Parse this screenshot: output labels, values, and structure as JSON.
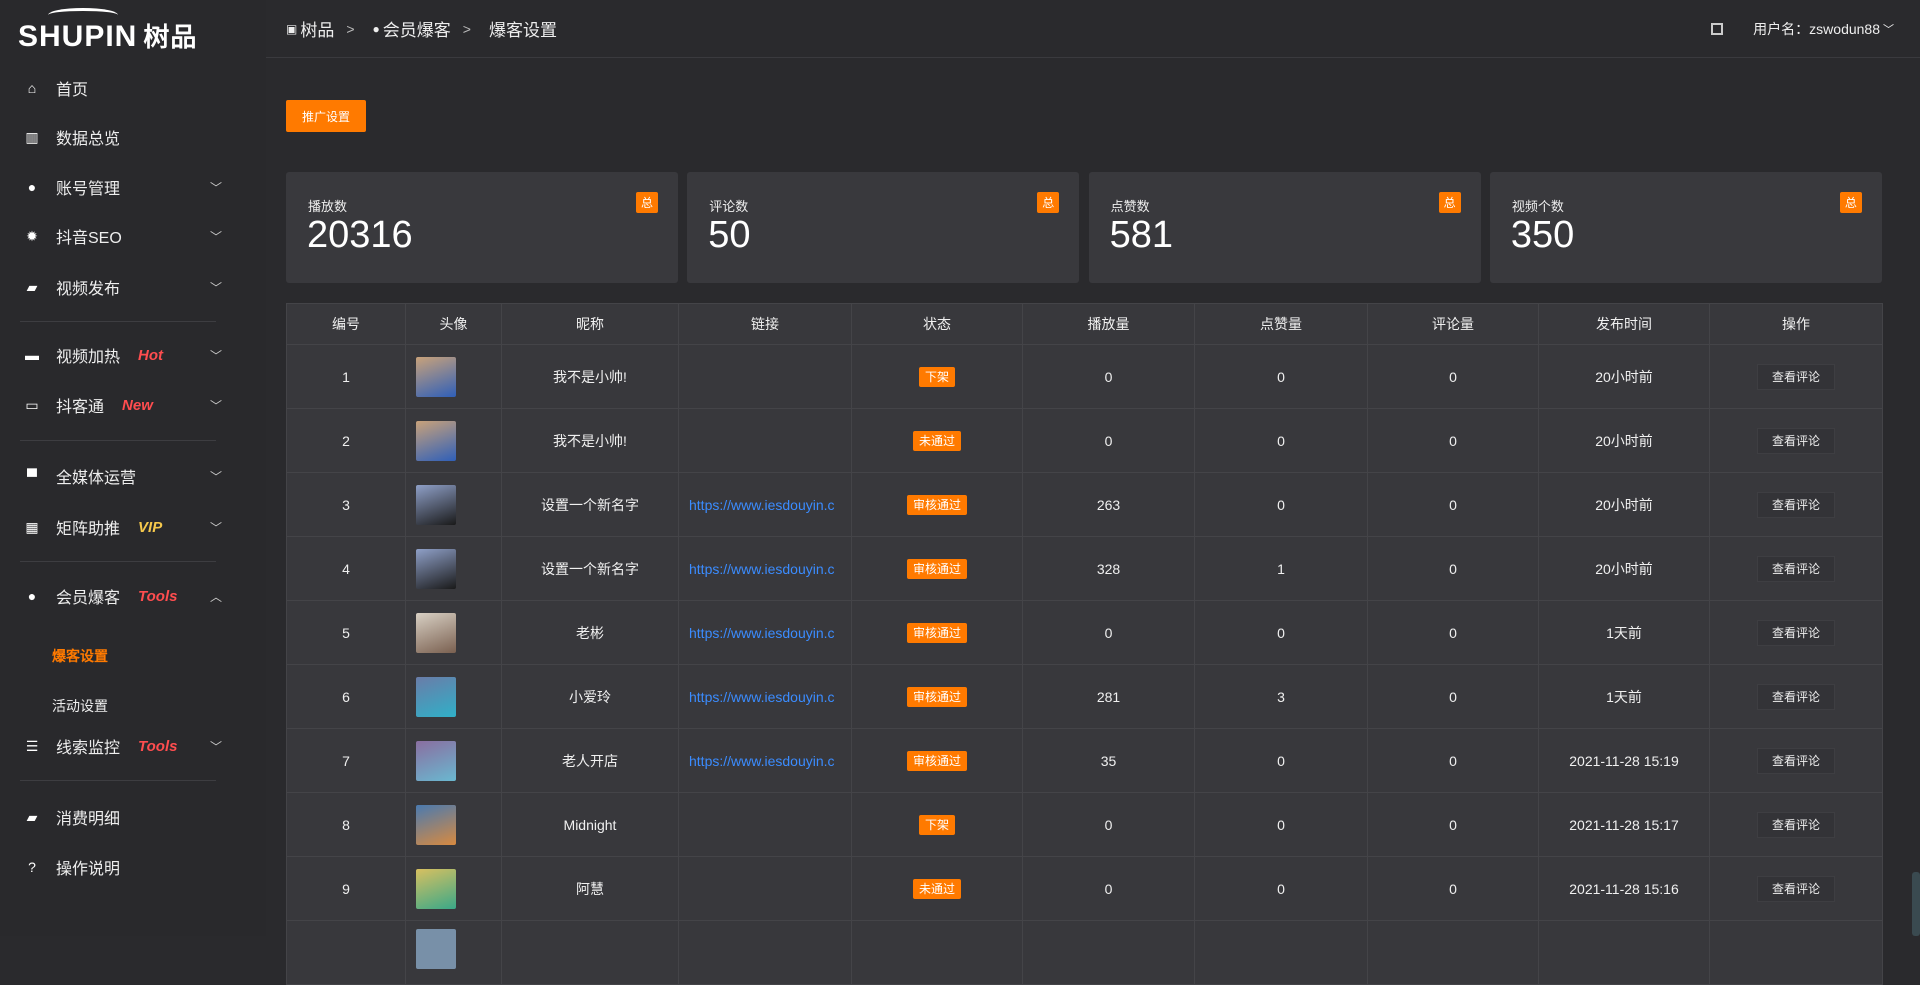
{
  "logo": {
    "text": "SHUPIN",
    "cn": "树品"
  },
  "sidebar": {
    "items": [
      {
        "label": "首页",
        "icon": "home-icon",
        "glyph": "⌂"
      },
      {
        "label": "数据总览",
        "icon": "bar-chart-icon",
        "glyph": "▥"
      },
      {
        "label": "账号管理",
        "icon": "user-icon",
        "glyph": "●",
        "chevron": "﹀"
      },
      {
        "label": "抖音SEO",
        "icon": "gear-icon",
        "glyph": "✹",
        "chevron": "﹀"
      },
      {
        "label": "视频发布",
        "icon": "camera-icon",
        "glyph": "▰",
        "chevron": "﹀"
      },
      {
        "label": "视频加热",
        "icon": "monitor-icon",
        "glyph": "▬",
        "tag": "Hot",
        "tag_color": "#ff4d4f",
        "chevron": "﹀"
      },
      {
        "label": "抖客通",
        "icon": "chat-icon",
        "glyph": "▭",
        "tag": "New",
        "tag_color": "#ff4d4f",
        "chevron": "﹀"
      },
      {
        "label": "全媒体运营",
        "icon": "desktop-icon",
        "glyph": "▀",
        "chevron": "﹀"
      },
      {
        "label": "矩阵助推",
        "icon": "grid-icon",
        "glyph": "▦",
        "tag": "VIP",
        "tag_color": "#f5c84c",
        "chevron": "﹀"
      },
      {
        "label": "会员爆客",
        "icon": "member-icon",
        "glyph": "●",
        "tag": "Tools",
        "tag_color": "#ff4d4f",
        "chevron": "︿"
      },
      {
        "label": "线索监控",
        "icon": "sliders-icon",
        "glyph": "☰",
        "tag": "Tools",
        "tag_color": "#ff4d4f",
        "chevron": "﹀"
      },
      {
        "label": "消费明细",
        "icon": "wallet-icon",
        "glyph": "▰"
      },
      {
        "label": "操作说明",
        "icon": "help-icon",
        "glyph": "?"
      }
    ],
    "sub_items": [
      {
        "label": "爆客设置",
        "active": true
      },
      {
        "label": "活动设置"
      }
    ]
  },
  "header": {
    "breadcrumb": [
      "树品",
      "会员爆客",
      "爆客设置"
    ],
    "separator": ">",
    "username": "用户名：zswodun88",
    "fullscreen_icon": "fullscreen-icon"
  },
  "promo_button": "推广设置",
  "stats": [
    {
      "label": "播放数",
      "value": "20316",
      "badge": "总"
    },
    {
      "label": "评论数",
      "value": "50",
      "badge": "总"
    },
    {
      "label": "点赞数",
      "value": "581",
      "badge": "总"
    },
    {
      "label": "视频个数",
      "value": "350",
      "badge": "总"
    }
  ],
  "table": {
    "columns": [
      "编号",
      "头像",
      "昵称",
      "链接",
      "状态",
      "播放量",
      "点赞量",
      "评论量",
      "发布时间",
      "操作"
    ],
    "action_label": "查看评论",
    "rows": [
      {
        "id": "1",
        "name": "我不是小帅!",
        "link": "",
        "status": "下架",
        "plays": "0",
        "likes": "0",
        "comments": "0",
        "time": "20小时前",
        "avatar": [
          "#c9a27a",
          "#2f5fb8"
        ]
      },
      {
        "id": "2",
        "name": "我不是小帅!",
        "link": "",
        "status": "未通过",
        "plays": "0",
        "likes": "0",
        "comments": "0",
        "time": "20小时前",
        "avatar": [
          "#c9a27a",
          "#2f5fb8"
        ]
      },
      {
        "id": "3",
        "name": "设置一个新名字",
        "link": "https://www.iesdouyin.c",
        "status": "审核通过",
        "plays": "263",
        "likes": "0",
        "comments": "0",
        "time": "20小时前",
        "avatar": [
          "#8fa0c8",
          "#1a1a1a"
        ]
      },
      {
        "id": "4",
        "name": "设置一个新名字",
        "link": "https://www.iesdouyin.c",
        "status": "审核通过",
        "plays": "328",
        "likes": "1",
        "comments": "0",
        "time": "20小时前",
        "avatar": [
          "#8fa0c8",
          "#1a1a1a"
        ]
      },
      {
        "id": "5",
        "name": "老彬",
        "link": "https://www.iesdouyin.c",
        "status": "审核通过",
        "plays": "0",
        "likes": "0",
        "comments": "0",
        "time": "1天前",
        "avatar": [
          "#d8d0c4",
          "#7a6050"
        ]
      },
      {
        "id": "6",
        "name": "小爱玲",
        "link": "https://www.iesdouyin.c",
        "status": "审核通过",
        "plays": "281",
        "likes": "3",
        "comments": "0",
        "time": "1天前",
        "avatar": [
          "#6a7ca8",
          "#30b0c8"
        ]
      },
      {
        "id": "7",
        "name": "老人开店",
        "link": "https://www.iesdouyin.c",
        "status": "审核通过",
        "plays": "35",
        "likes": "0",
        "comments": "0",
        "time": "2021-11-28 15:19",
        "avatar": [
          "#8a6ea0",
          "#6ab8d0"
        ]
      },
      {
        "id": "8",
        "name": "Midnight",
        "link": "",
        "status": "下架",
        "plays": "0",
        "likes": "0",
        "comments": "0",
        "time": "2021-11-28 15:17",
        "avatar": [
          "#4a7ab0",
          "#d88a40"
        ]
      },
      {
        "id": "9",
        "name": "阿慧",
        "link": "",
        "status": "未通过",
        "plays": "0",
        "likes": "0",
        "comments": "0",
        "time": "2021-11-28 15:16",
        "avatar": [
          "#d8c060",
          "#3aa888"
        ]
      }
    ]
  },
  "colors": {
    "accent": "#ff7a00",
    "link": "#3b8cff",
    "tag_red": "#ff4d4f",
    "tag_vip": "#f5c84c"
  }
}
